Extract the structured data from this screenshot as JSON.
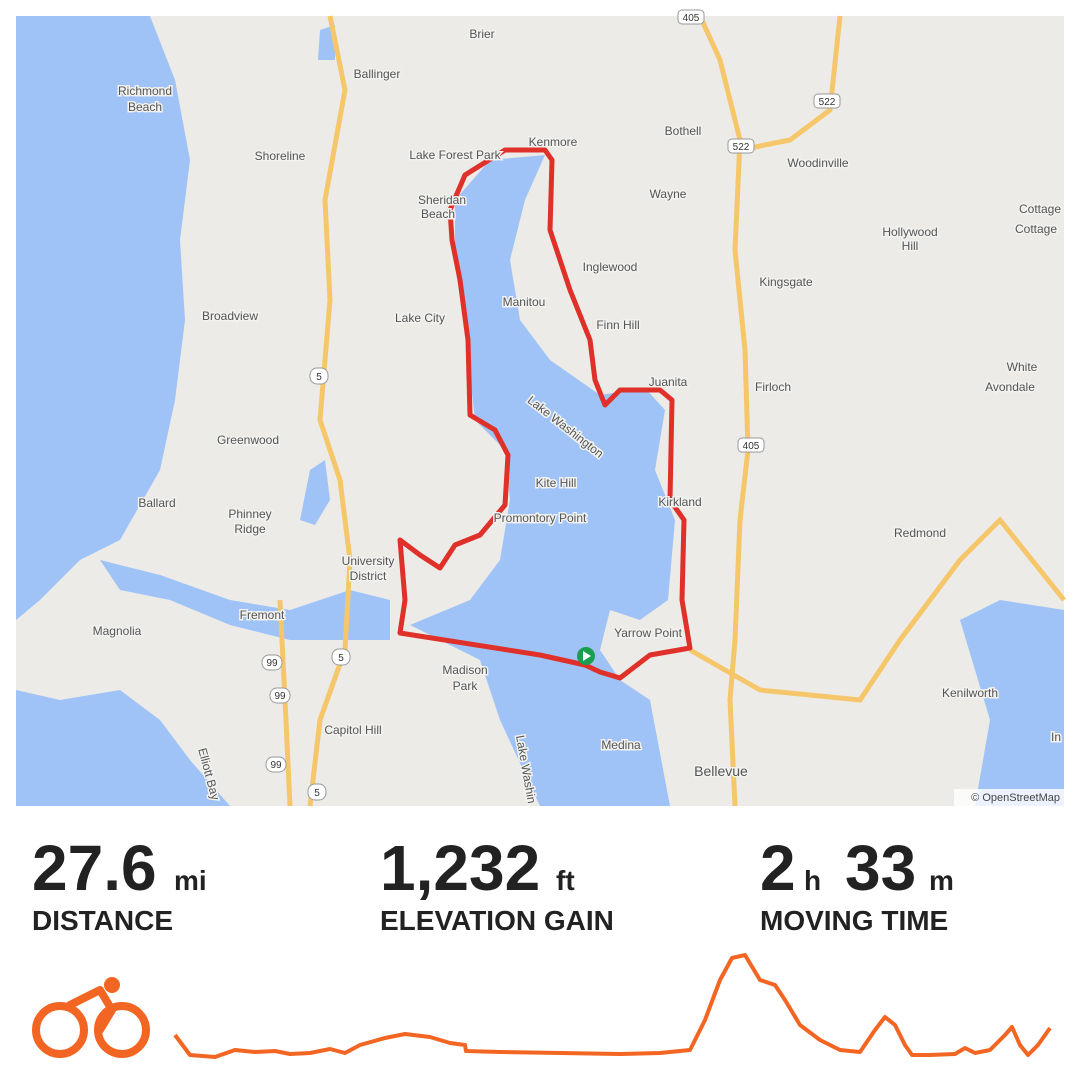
{
  "map": {
    "labels": [
      "Brier",
      "Ballinger",
      "Richmond",
      "Beach",
      "Shoreline",
      "Lake Forest Park",
      "Kenmore",
      "Bothell",
      "Woodinville",
      "Sheridan",
      "Beach",
      "Wayne",
      "Cottage",
      "Cottage",
      "Hollywood",
      "Hill",
      "Inglewood",
      "Manitou",
      "Finn Hill",
      "Kingsgate",
      "Broadview",
      "Lake City",
      "Juanita",
      "Firloch",
      "Lake Washington",
      "White",
      "Avondale",
      "Greenwood",
      "Kite Hill",
      "Promontory Point",
      "Kirkland",
      "Ballard",
      "Phinney",
      "Ridge",
      "University",
      "District",
      "Redmond",
      "Fremont",
      "Magnolia",
      "Yarrow Point",
      "Madison",
      "Park",
      "Capitol Hill",
      "Medina",
      "Bellevue",
      "Kenilworth",
      "Elliott Bay",
      "Lake Washin",
      "In"
    ],
    "shields": [
      "405",
      "522",
      "522",
      "5",
      "405",
      "99",
      "99",
      "5",
      "99",
      "5"
    ],
    "attribution": "© OpenStreetMap"
  },
  "stats": [
    {
      "value": "27.6",
      "unit": "mi",
      "label": "DISTANCE"
    },
    {
      "value": "1,232",
      "unit": "ft",
      "label": "ELEVATION GAIN"
    },
    {
      "value": "2",
      "unit": "h",
      "value2": "33",
      "unit2": "m",
      "label": "MOVING TIME"
    }
  ]
}
